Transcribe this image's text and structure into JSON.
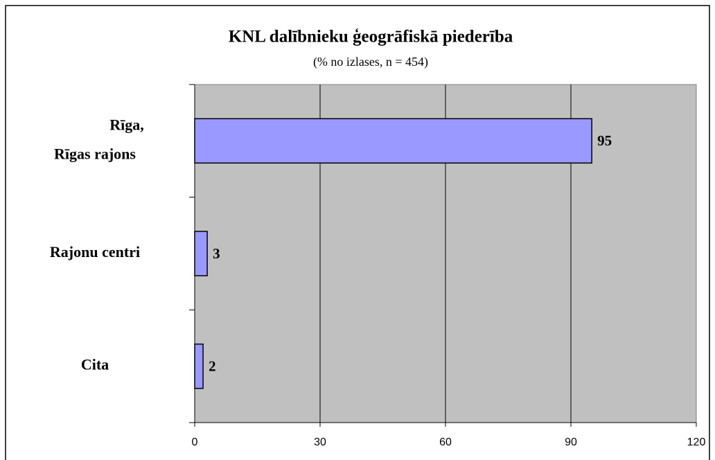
{
  "chart_data": {
    "type": "barh",
    "title": "KNL dalībnieku ģeogrāfiskā piederība",
    "subtitle": "(% no izlases, n = 454)",
    "categories": [
      "Rīga,\nRīgas rajons",
      "Rajonu centri",
      "Cita"
    ],
    "values": [
      95,
      3,
      2
    ],
    "color": "#9999ff",
    "xlim": [
      0,
      120
    ],
    "xticks": [
      0,
      30,
      60,
      90,
      120
    ],
    "grid": true
  }
}
